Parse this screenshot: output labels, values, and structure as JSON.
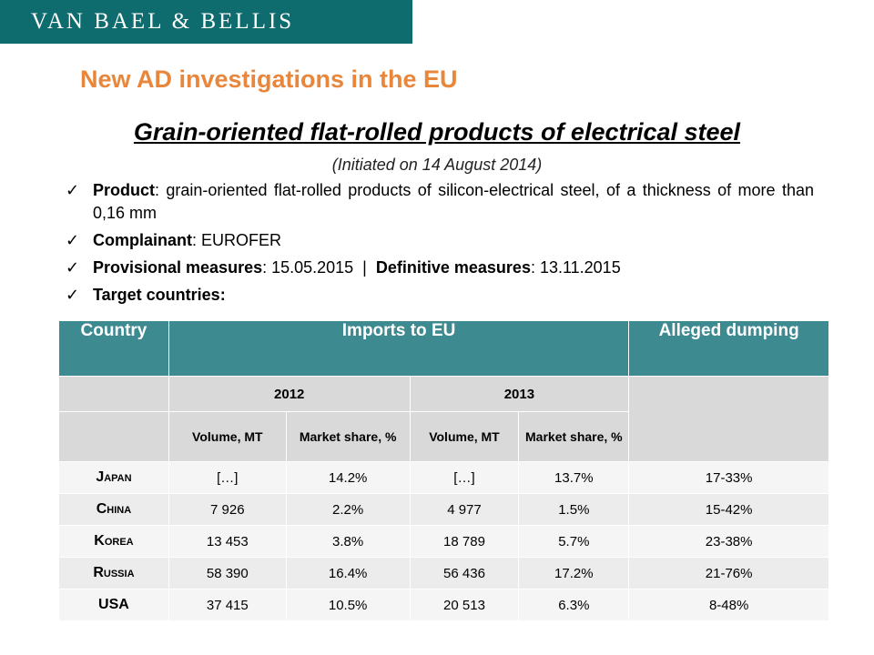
{
  "logo": {
    "text": "VAN BAEL & BELLIS"
  },
  "main_title": "New AD investigations in the EU",
  "subtitle": "Grain-oriented flat-rolled products of electrical steel",
  "initiated": "(Initiated on 14 August 2014)",
  "bullets": {
    "product_label": "Product",
    "product_text": ": grain-oriented flat-rolled products of silicon-electrical steel, of a thickness of more than 0,16 mm",
    "complainant_label": "Complainant",
    "complainant_text": ": EUROFER",
    "provisional_label": "Provisional measures",
    "provisional_text": ": 15.05.2015  |  ",
    "definitive_label": "Definitive measures",
    "definitive_text": ": 13.11.2015",
    "target_label": "Target countries:"
  },
  "table": {
    "headers": {
      "country": "Country",
      "imports": "Imports to EU",
      "dumping": "Alleged dumping"
    },
    "years": [
      "2012",
      "2013"
    ],
    "subheaders": {
      "volume": "Volume, MT",
      "share": "Market share, %"
    },
    "rows": [
      {
        "country": "Japan",
        "vol2012": "[…]",
        "share2012": "14.2%",
        "vol2013": "[…]",
        "share2013": "13.7%",
        "dumping": "17-33%"
      },
      {
        "country": "China",
        "vol2012": "7 926",
        "share2012": "2.2%",
        "vol2013": "4 977",
        "share2013": "1.5%",
        "dumping": "15-42%"
      },
      {
        "country": "Korea",
        "vol2012": "13 453",
        "share2012": "3.8%",
        "vol2013": "18 789",
        "share2013": "5.7%",
        "dumping": "23-38%"
      },
      {
        "country": "Russia",
        "vol2012": "58 390",
        "share2012": "16.4%",
        "vol2013": "56 436",
        "share2013": "17.2%",
        "dumping": "21-76%"
      },
      {
        "country": "USA",
        "vol2012": "37 415",
        "share2012": "10.5%",
        "vol2013": "20 513",
        "share2013": "6.3%",
        "dumping": "8-48%"
      }
    ]
  },
  "colors": {
    "logo_bg": "#0e6b6e",
    "title": "#e8863c",
    "table_header": "#3d8a91"
  }
}
